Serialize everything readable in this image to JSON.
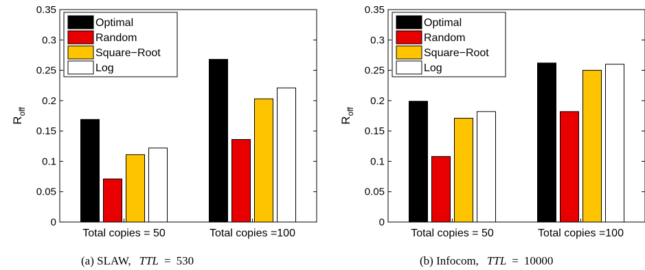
{
  "chart_data": [
    {
      "type": "bar",
      "panel": "(a)",
      "caption_prefix": "(a) SLAW,",
      "caption_ttl_label": "TTL",
      "caption_ttl_value": "530",
      "ylabel_main": "R",
      "ylabel_sub": "off",
      "ylim": [
        0,
        0.35
      ],
      "yticks": [
        "0",
        "0.05",
        "0.1",
        "0.15",
        "0.2",
        "0.25",
        "0.3",
        "0.35"
      ],
      "categories": [
        "Total copies = 50",
        "Total copies =100"
      ],
      "legend_position": "top-left",
      "series": [
        {
          "name": "Optimal",
          "color": "#000000",
          "values": [
            0.169,
            0.268
          ]
        },
        {
          "name": "Random",
          "color": "#e80000",
          "values": [
            0.071,
            0.136
          ]
        },
        {
          "name": "Square−Root",
          "color": "#ffc400",
          "values": [
            0.111,
            0.203
          ]
        },
        {
          "name": "Log",
          "color": "#ffffff",
          "values": [
            0.122,
            0.221
          ]
        }
      ]
    },
    {
      "type": "bar",
      "panel": "(b)",
      "caption_prefix": "(b) Infocom,",
      "caption_ttl_label": "TTL",
      "caption_ttl_value": "10000",
      "ylabel_main": "R",
      "ylabel_sub": "off",
      "ylim": [
        0,
        0.35
      ],
      "yticks": [
        "0",
        "0.05",
        "0.1",
        "0.15",
        "0.2",
        "0.25",
        "0.3",
        "0.35"
      ],
      "categories": [
        "Total copies = 50",
        "Total copies =100"
      ],
      "legend_position": "top-left",
      "series": [
        {
          "name": "Optimal",
          "color": "#000000",
          "values": [
            0.199,
            0.262
          ]
        },
        {
          "name": "Random",
          "color": "#e80000",
          "values": [
            0.108,
            0.182
          ]
        },
        {
          "name": "Square−Root",
          "color": "#ffc400",
          "values": [
            0.171,
            0.25
          ]
        },
        {
          "name": "Log",
          "color": "#ffffff",
          "values": [
            0.182,
            0.26
          ]
        }
      ]
    }
  ]
}
